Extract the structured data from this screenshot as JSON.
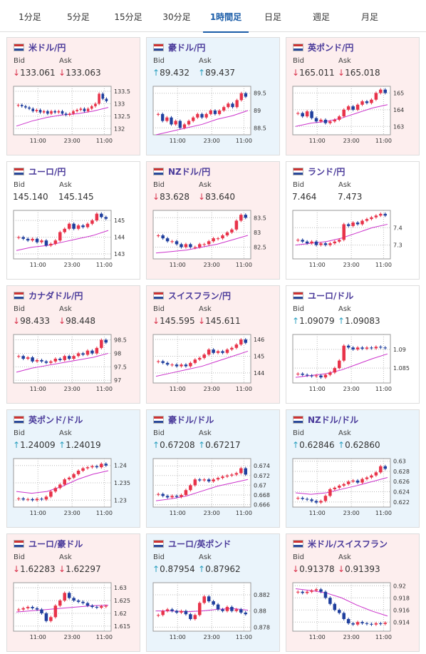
{
  "tabs": [
    "1分足",
    "5分足",
    "15分足",
    "30分足",
    "1時間足",
    "日足",
    "週足",
    "月足"
  ],
  "active_tab": 4,
  "bid_label": "Bid",
  "ask_label": "Ask",
  "time_labels": [
    "11:00",
    "23:00",
    "11:00"
  ],
  "pairs": [
    {
      "name": "米ドル/円",
      "bid": "133.061",
      "ask": "133.063",
      "trend": "down",
      "bg": "#fdeeee",
      "ylim": [
        131.75,
        133.7
      ],
      "yticks": [
        133.5,
        133,
        132.5,
        132
      ],
      "closes": [
        132.95,
        132.9,
        132.85,
        132.8,
        132.7,
        132.75,
        132.65,
        132.7,
        132.6,
        132.7,
        132.65,
        132.7,
        132.6,
        132.55,
        132.6,
        132.7,
        132.75,
        132.8,
        132.7,
        132.8,
        132.9,
        133.0,
        133.4,
        133.2,
        133.1
      ],
      "ma": [
        132.1,
        132.3,
        132.45,
        132.55,
        132.6,
        132.7,
        132.85
      ]
    },
    {
      "name": "豪ドル/円",
      "bid": "89.432",
      "ask": "89.437",
      "trend": "up",
      "bg": "#eaf4fb",
      "ylim": [
        88.3,
        89.7
      ],
      "yticks": [
        89.5,
        89,
        88.5
      ],
      "closes": [
        88.9,
        88.7,
        88.8,
        88.6,
        88.7,
        88.5,
        88.6,
        88.7,
        88.8,
        88.9,
        88.8,
        88.9,
        89.0,
        88.9,
        89.0,
        89.1,
        89.2,
        89.1,
        89.3,
        89.5,
        89.4
      ],
      "ma": [
        88.3,
        88.4,
        88.5,
        88.6,
        88.75,
        88.85,
        89.0
      ]
    },
    {
      "name": "英ポンド/円",
      "bid": "165.011",
      "ask": "165.018",
      "trend": "down",
      "bg": "#fdeeee",
      "ylim": [
        162.5,
        165.4
      ],
      "yticks": [
        165,
        164,
        163
      ],
      "closes": [
        163.8,
        163.6,
        163.9,
        163.5,
        163.3,
        163.4,
        163.2,
        163.3,
        163.4,
        163.6,
        164.0,
        164.2,
        164.0,
        164.3,
        164.5,
        164.4,
        164.6,
        165.0,
        165.2,
        165.0
      ],
      "ma": [
        163.0,
        163.2,
        163.3,
        163.5,
        163.8,
        164.1,
        164.3
      ]
    },
    {
      "name": "ユーロ/円",
      "bid": "145.140",
      "ask": "145.145",
      "bg": "#ffffff",
      "ylim": [
        142.7,
        145.6
      ],
      "yticks": [
        145,
        144,
        143
      ],
      "closes": [
        144.0,
        143.9,
        143.8,
        143.9,
        143.7,
        143.8,
        143.5,
        143.6,
        143.8,
        144.3,
        144.5,
        144.8,
        144.5,
        144.7,
        144.6,
        144.8,
        145.0,
        145.4,
        145.2,
        145.1
      ],
      "ma": [
        143.2,
        143.4,
        143.5,
        143.7,
        143.9,
        144.1,
        144.4
      ]
    },
    {
      "name": "NZドル/円",
      "bid": "83.628",
      "ask": "83.640",
      "trend": "down",
      "bg": "#fdeeee",
      "ylim": [
        82.1,
        83.75
      ],
      "yticks": [
        83.5,
        83,
        82.5
      ],
      "closes": [
        82.9,
        82.8,
        82.7,
        82.7,
        82.6,
        82.5,
        82.6,
        82.5,
        82.5,
        82.6,
        82.6,
        82.7,
        82.8,
        82.8,
        82.9,
        83.0,
        83.1,
        83.4,
        83.6,
        83.5
      ],
      "ma": [
        82.3,
        82.35,
        82.4,
        82.5,
        82.6,
        82.75,
        82.9
      ]
    },
    {
      "name": "ランド/円",
      "bid": "7.464",
      "ask": "7.473",
      "bg": "#ffffff",
      "ylim": [
        7.22,
        7.5
      ],
      "yticks": [
        7.4,
        7.3
      ],
      "closes": [
        7.33,
        7.32,
        7.31,
        7.32,
        7.3,
        7.31,
        7.3,
        7.31,
        7.32,
        7.33,
        7.42,
        7.41,
        7.43,
        7.42,
        7.44,
        7.45,
        7.46,
        7.47,
        7.48,
        7.47
      ],
      "ma": [
        7.3,
        7.31,
        7.32,
        7.34,
        7.37,
        7.4,
        7.42
      ]
    },
    {
      "name": "カナダドル/円",
      "bid": "98.433",
      "ask": "98.448",
      "trend": "down",
      "bg": "#fdeeee",
      "ylim": [
        96.9,
        98.7
      ],
      "yticks": [
        98.5,
        98,
        97.5,
        97
      ],
      "closes": [
        97.9,
        97.8,
        97.85,
        97.7,
        97.75,
        97.7,
        97.65,
        97.7,
        97.8,
        97.75,
        97.9,
        97.8,
        97.9,
        98.0,
        97.95,
        98.1,
        98.0,
        98.2,
        98.5,
        98.4
      ],
      "ma": [
        97.3,
        97.45,
        97.55,
        97.65,
        97.75,
        97.85,
        98.0
      ]
    },
    {
      "name": "スイスフラン/円",
      "bid": "145.595",
      "ask": "145.611",
      "trend": "down",
      "bg": "#fdeeee",
      "ylim": [
        143.4,
        146.3
      ],
      "yticks": [
        146,
        145,
        144
      ],
      "closes": [
        144.7,
        144.6,
        144.5,
        144.5,
        144.4,
        144.5,
        144.4,
        144.6,
        144.8,
        144.9,
        145.1,
        145.4,
        145.2,
        145.3,
        145.2,
        145.4,
        145.5,
        145.7,
        146.0,
        145.8
      ],
      "ma": [
        143.8,
        144.0,
        144.2,
        144.4,
        144.7,
        145.0,
        145.3
      ]
    },
    {
      "name": "ユーロ/ドル",
      "bid": "1.09079",
      "ask": "1.09083",
      "trend": "up",
      "bg": "#ffffff",
      "ylim": [
        1.081,
        1.094
      ],
      "yticks": [
        1.09,
        1.085
      ],
      "closes": [
        1.0835,
        1.0832,
        1.083,
        1.0828,
        1.083,
        1.0825,
        1.0832,
        1.0838,
        1.085,
        1.087,
        1.091,
        1.0905,
        1.09,
        1.0905,
        1.0902,
        1.0905,
        1.0903,
        1.0907,
        1.0905,
        1.0903
      ],
      "ma": [
        1.0825,
        1.083,
        1.0835,
        1.0845,
        1.086,
        1.0875,
        1.0888
      ]
    },
    {
      "name": "英ポンド/ドル",
      "bid": "1.24009",
      "ask": "1.24019",
      "trend": "up",
      "bg": "#eaf4fb",
      "ylim": [
        1.228,
        1.242
      ],
      "yticks": [
        1.24,
        1.235,
        1.23
      ],
      "closes": [
        1.2305,
        1.2302,
        1.2303,
        1.23,
        1.2304,
        1.2302,
        1.231,
        1.2325,
        1.2335,
        1.2345,
        1.236,
        1.2365,
        1.2375,
        1.2385,
        1.2392,
        1.2395,
        1.2398,
        1.2395,
        1.2405,
        1.24
      ],
      "ma": [
        1.2325,
        1.232,
        1.2325,
        1.234,
        1.236,
        1.2375,
        1.2385
      ]
    },
    {
      "name": "豪ドル/ドル",
      "bid": "0.67208",
      "ask": "0.67217",
      "trend": "up",
      "bg": "#eaf4fb",
      "ylim": [
        0.6655,
        0.6755
      ],
      "yticks": [
        0.674,
        0.672,
        0.67,
        0.668,
        0.666
      ],
      "closes": [
        0.6682,
        0.6678,
        0.6675,
        0.6678,
        0.6676,
        0.668,
        0.669,
        0.67,
        0.6712,
        0.671,
        0.6712,
        0.6708,
        0.6712,
        0.6715,
        0.6718,
        0.672,
        0.6722,
        0.6725,
        0.6735,
        0.6722
      ],
      "ma": [
        0.6668,
        0.6672,
        0.6678,
        0.6688,
        0.6698,
        0.6705,
        0.6712
      ]
    },
    {
      "name": "NZドル/ドル",
      "bid": "0.62846",
      "ask": "0.62860",
      "trend": "up",
      "bg": "#eaf4fb",
      "ylim": [
        0.621,
        0.6305
      ],
      "yticks": [
        0.63,
        0.628,
        0.626,
        0.624,
        0.622
      ],
      "closes": [
        0.6228,
        0.6226,
        0.6225,
        0.6222,
        0.6219,
        0.6222,
        0.6232,
        0.6245,
        0.6248,
        0.6252,
        0.6255,
        0.626,
        0.6262,
        0.6258,
        0.6265,
        0.6268,
        0.6272,
        0.6278,
        0.629,
        0.6285
      ],
      "ma": [
        0.6238,
        0.6235,
        0.6238,
        0.6245,
        0.6252,
        0.626,
        0.6268
      ]
    },
    {
      "name": "ユーロ/豪ドル",
      "bid": "1.62283",
      "ask": "1.62297",
      "trend": "down",
      "bg": "#fdeeee",
      "ylim": [
        1.613,
        1.632
      ],
      "yticks": [
        1.63,
        1.625,
        1.62,
        1.615
      ],
      "closes": [
        1.6215,
        1.622,
        1.6225,
        1.622,
        1.6215,
        1.62,
        1.617,
        1.6185,
        1.623,
        1.625,
        1.628,
        1.626,
        1.625,
        1.6245,
        1.624,
        1.623,
        1.6225,
        1.6222,
        1.6228,
        1.6229
      ],
      "ma": [
        1.6205,
        1.621,
        1.6215,
        1.622,
        1.6225,
        1.623,
        1.6232
      ]
    },
    {
      "name": "ユーロ/英ポンド",
      "bid": "0.87954",
      "ask": "0.87962",
      "trend": "up",
      "bg": "#eaf4fb",
      "ylim": [
        0.8775,
        0.8835
      ],
      "yticks": [
        0.882,
        0.88,
        0.878
      ],
      "closes": [
        0.8795,
        0.88,
        0.8802,
        0.88,
        0.8798,
        0.88,
        0.8796,
        0.879,
        0.8795,
        0.881,
        0.8818,
        0.8812,
        0.8808,
        0.8802,
        0.88,
        0.8805,
        0.88,
        0.8802,
        0.8798,
        0.8796
      ],
      "ma": [
        0.88,
        0.88,
        0.8799,
        0.88,
        0.8802,
        0.8803,
        0.8801
      ]
    },
    {
      "name": "米ドル/スイスフラン",
      "bid": "0.91378",
      "ask": "0.91393",
      "trend": "down",
      "bg": "#fdeeee",
      "ylim": [
        0.9125,
        0.9205
      ],
      "yticks": [
        0.92,
        0.918,
        0.916,
        0.914
      ],
      "closes": [
        0.919,
        0.9188,
        0.919,
        0.9192,
        0.9194,
        0.919,
        0.918,
        0.917,
        0.916,
        0.9155,
        0.9145,
        0.9138,
        0.9136,
        0.914,
        0.9138,
        0.9137,
        0.9136,
        0.9138,
        0.9137,
        0.9139
      ],
      "ma": [
        0.9195,
        0.9192,
        0.9188,
        0.918,
        0.9168,
        0.9158,
        0.915
      ]
    }
  ]
}
